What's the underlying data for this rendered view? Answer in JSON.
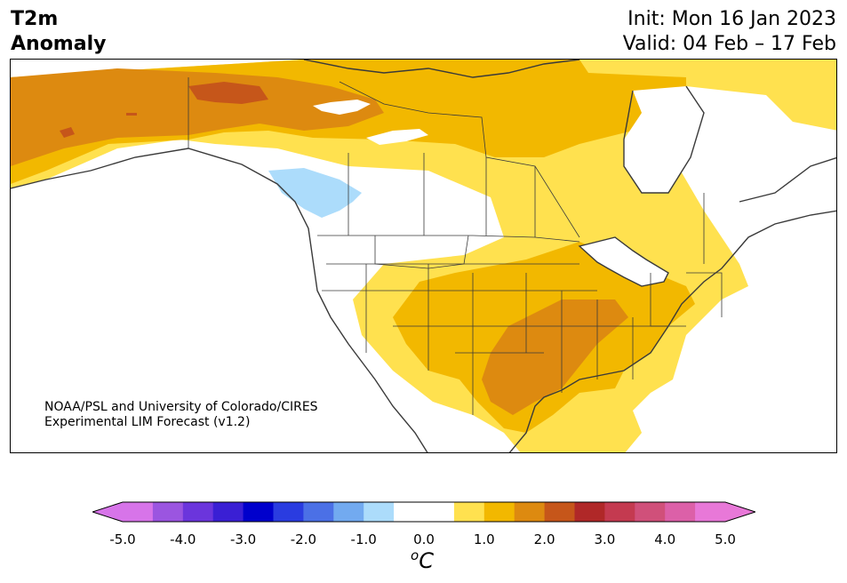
{
  "title": {
    "line1": "T2m",
    "line2": "Anomaly"
  },
  "init": "Init: Mon 16 Jan 2023",
  "valid": "Valid: 04 Feb – 17 Feb",
  "credit": {
    "line1": "NOAA/PSL and University of Colorado/CIRES",
    "line2": "Experimental LIM Forecast (v1.2)"
  },
  "colorbar": {
    "ticks": [
      "-5.0",
      "-4.0",
      "-3.0",
      "-2.0",
      "-1.0",
      "0.0",
      "1.0",
      "2.0",
      "3.0",
      "4.0",
      "5.0"
    ],
    "unit_base": "C",
    "unit_super": "o",
    "colors": [
      "#d774e9",
      "#9b55e0",
      "#6b35dc",
      "#3a1fd4",
      "#0000cc",
      "#2a3ce0",
      "#4b70e6",
      "#72aaf0",
      "#acdcfb",
      "#ffffff",
      "#ffffff",
      "#ffe14f",
      "#f2b800",
      "#dd8a10",
      "#c6561a",
      "#b02828",
      "#c43a50",
      "#d0507a",
      "#dc60a8",
      "#e878d8"
    ],
    "extend_low_color": "#d774e9",
    "extend_high_color": "#e878d8"
  },
  "legend_colors": {
    "near_zero": "#ffffff",
    "plus_0_5": "#ffe14f",
    "plus_1": "#f2b800",
    "plus_1_5": "#dd8a10",
    "plus_2": "#c6561a",
    "minus_1": "#acdcfb"
  }
}
